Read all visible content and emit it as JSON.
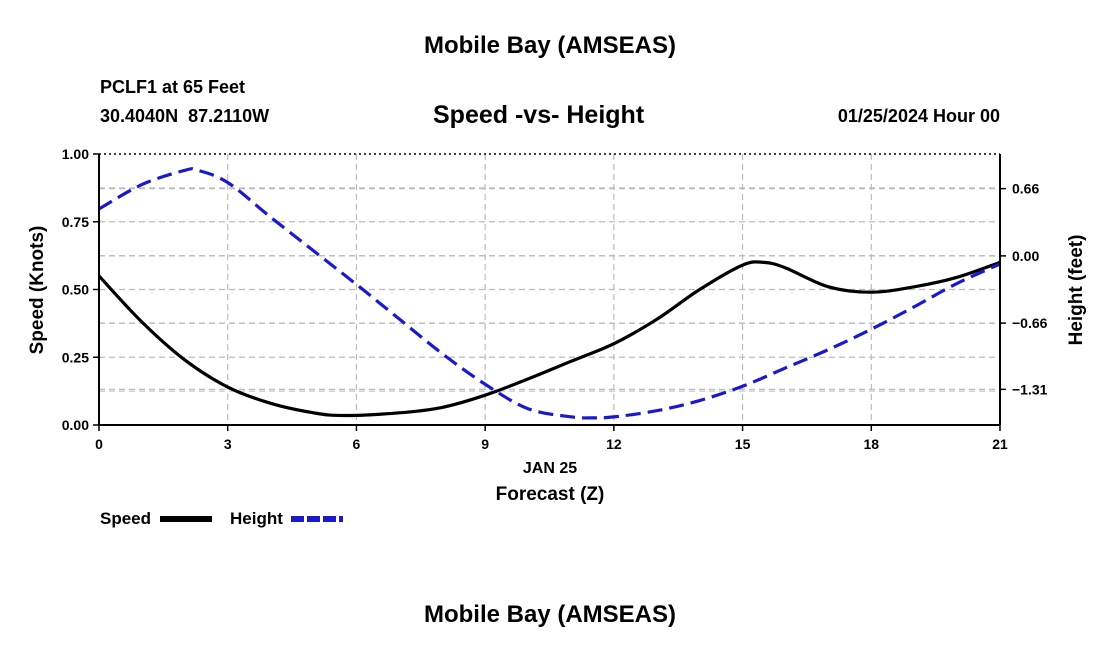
{
  "header": {
    "title": "Mobile Bay (AMSEAS)",
    "station": "PCLF1 at 65 Feet",
    "coords": "30.4040N  87.2110W",
    "datetime": "01/25/2024 Hour 00",
    "footer_title": "Mobile Bay (AMSEAS)"
  },
  "colors": {
    "speed": "#000000",
    "height": "#1a1acc",
    "grid": "#bbbbbb"
  },
  "chart_data": {
    "type": "line",
    "title": "Speed -vs- Height",
    "xlabel": "Forecast (Z)",
    "xdate": "JAN 25",
    "ylabel": "Speed (Knots)",
    "y2label": "Height (feet)",
    "xlim": [
      0,
      21
    ],
    "ylim": [
      0,
      1
    ],
    "y2lim": [
      -1.66,
      1.0
    ],
    "grid": true,
    "legend": "bottom-left",
    "x_ticks": [
      0,
      3,
      6,
      9,
      12,
      15,
      18,
      21
    ],
    "y_ticks": [
      "0.00",
      "0.25",
      "0.50",
      "0.75",
      "1.00"
    ],
    "y2_ticks": [
      "0.66",
      "0.00",
      "−0.66",
      "−1.31"
    ],
    "y2_tick_values": [
      0.66,
      0.0,
      -0.66,
      -1.31
    ],
    "series": [
      {
        "name": "Speed",
        "axis": "left",
        "style": "solid",
        "x": [
          0,
          1,
          2,
          3,
          4,
          5,
          5.7,
          7,
          8,
          9,
          10,
          11,
          12,
          13,
          14,
          15,
          15.5,
          16,
          17,
          18,
          19,
          20,
          21
        ],
        "y": [
          0.55,
          0.38,
          0.24,
          0.14,
          0.08,
          0.045,
          0.035,
          0.045,
          0.065,
          0.11,
          0.17,
          0.235,
          0.3,
          0.39,
          0.5,
          0.59,
          0.6,
          0.58,
          0.51,
          0.49,
          0.51,
          0.545,
          0.6
        ]
      },
      {
        "name": "Height",
        "axis": "right",
        "style": "dashed",
        "x": [
          0,
          1,
          2,
          2.3,
          3,
          4,
          5,
          6,
          7,
          8,
          9,
          10,
          11,
          11.5,
          12,
          13,
          14,
          15,
          16,
          17,
          18,
          19,
          20,
          21
        ],
        "y": [
          0.46,
          0.7,
          0.84,
          0.84,
          0.72,
          0.38,
          0.05,
          -0.28,
          -0.62,
          -0.96,
          -1.26,
          -1.5,
          -1.58,
          -1.59,
          -1.58,
          -1.52,
          -1.42,
          -1.28,
          -1.1,
          -0.92,
          -0.72,
          -0.5,
          -0.27,
          -0.08
        ]
      }
    ]
  }
}
